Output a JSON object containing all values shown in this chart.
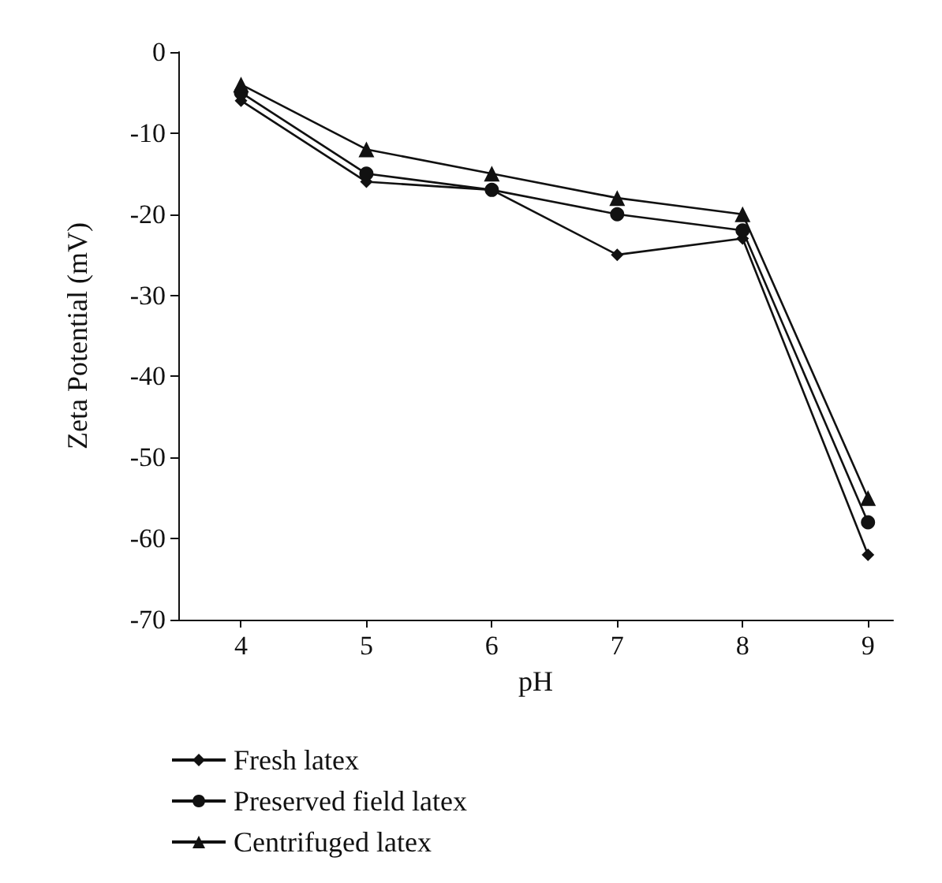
{
  "chart_data": {
    "type": "line",
    "xlabel": "pH",
    "ylabel": "Zeta Potential (mV)",
    "x": [
      4,
      5,
      6,
      7,
      8,
      9
    ],
    "xlim": [
      3.5,
      9.2
    ],
    "xticks": [
      4,
      5,
      6,
      7,
      8,
      9
    ],
    "ylim": [
      -70,
      0
    ],
    "yticks": [
      -70,
      -60,
      -50,
      -40,
      -30,
      -20,
      -10,
      0
    ],
    "grid": false,
    "legend": "bottom",
    "series": [
      {
        "name": "Fresh latex",
        "color": "#111111",
        "marker": "diamond",
        "values": [
          -6,
          -16,
          -17,
          -25,
          -23,
          -62
        ]
      },
      {
        "name": "Preserved field latex",
        "color": "#111111",
        "marker": "circle",
        "values": [
          -5,
          -15,
          -17,
          -20,
          -22,
          -58
        ]
      },
      {
        "name": "Centrifuged latex",
        "color": "#111111",
        "marker": "triangle",
        "values": [
          -4,
          -12,
          -15,
          -18,
          -20,
          -55
        ]
      }
    ]
  }
}
